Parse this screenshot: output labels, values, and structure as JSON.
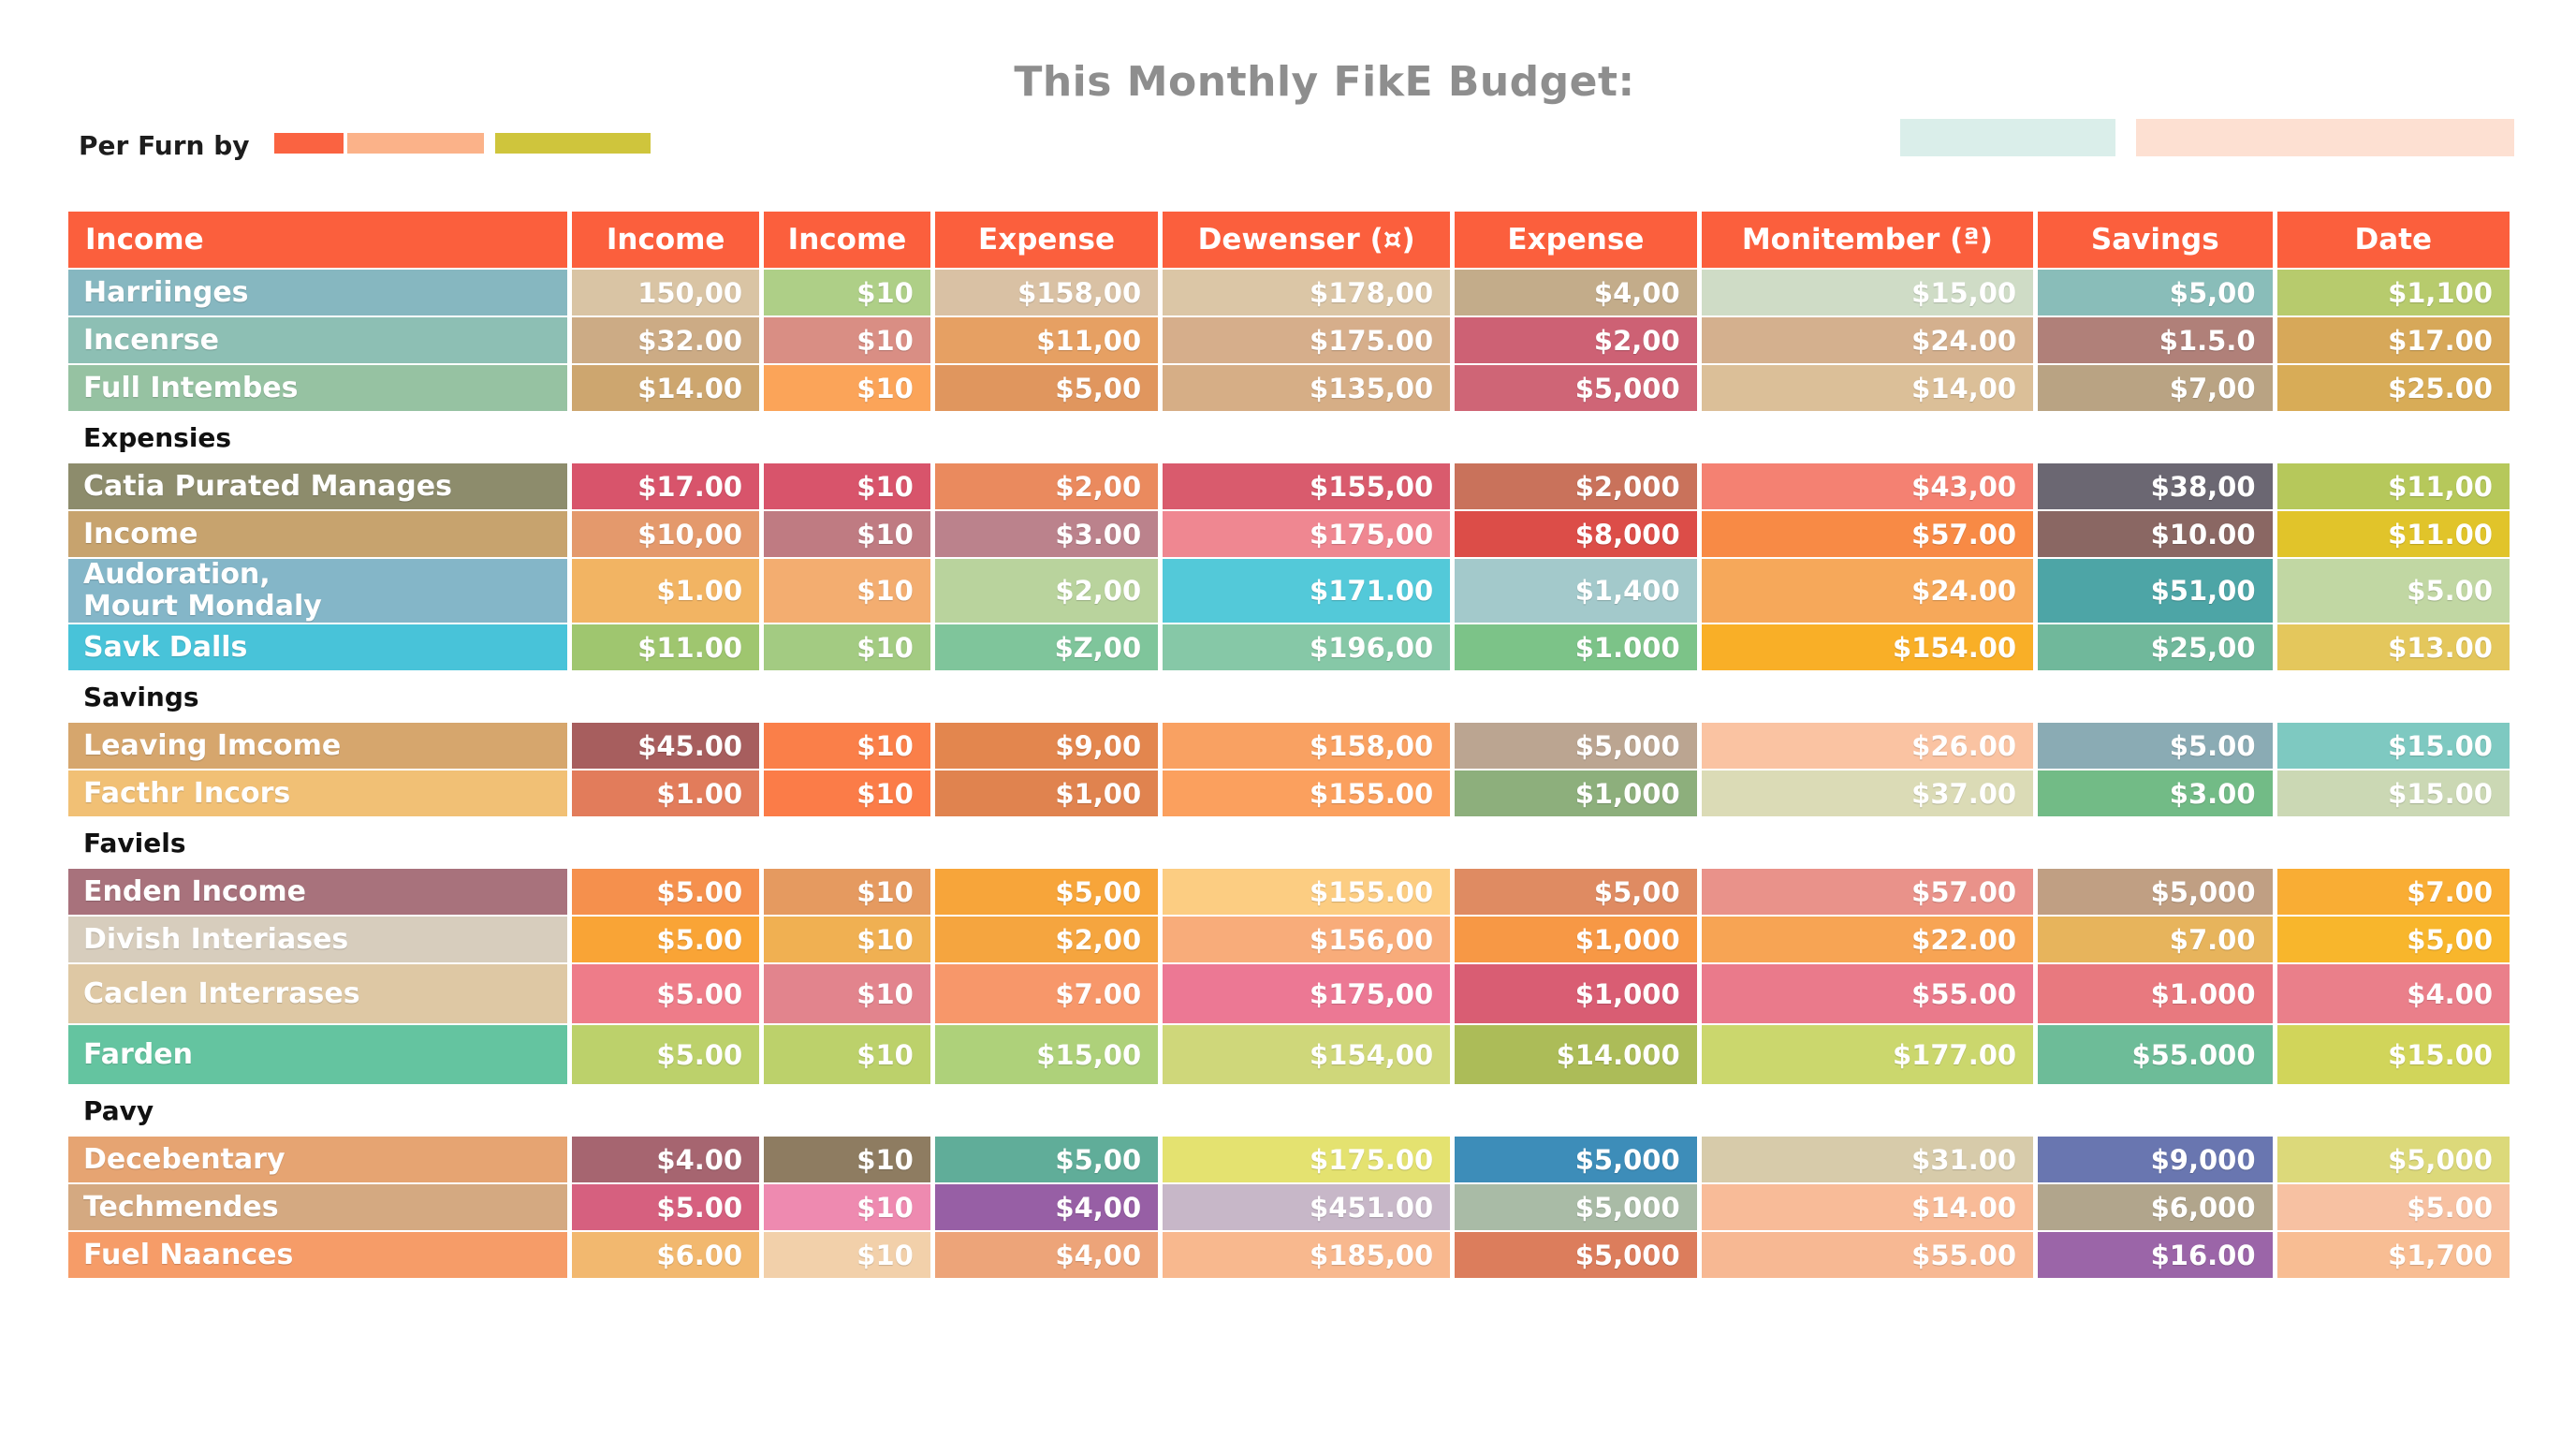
{
  "title": "This Monthly FikE Budget:",
  "legend": {
    "label": "Per Furn by",
    "swatches": [
      {
        "color": "#fa6341",
        "w": 74
      },
      {
        "color": "#fbb289",
        "w": 146
      },
      {
        "color": "#cfc53c",
        "w": 166
      }
    ]
  },
  "right_boxes": [
    {
      "color": "#daeeea"
    },
    {
      "color": "#fde0d2"
    }
  ],
  "headers": [
    "Income",
    "Income",
    "Income",
    "Expense",
    "Dewenser (¤)",
    "Expense",
    "Monitember (ª)",
    "Savings",
    "Date"
  ],
  "sections": [
    {
      "title": "",
      "rows": [
        {
          "label": "Harriinges",
          "label_color": "#86b7c0",
          "cells": [
            [
              "150,00",
              "#d9c4a4"
            ],
            [
              "$10",
              "#aecf87"
            ],
            [
              "$158,00",
              "#d9c1a4"
            ],
            [
              "$178,00",
              "#dbc6a6"
            ],
            [
              "$4,00",
              "#c3ac8a"
            ],
            [
              "$15,00",
              "#cfdcc6"
            ],
            [
              "$5,00",
              "#89bdb9"
            ],
            [
              "$1,100",
              "#b7cb6d"
            ]
          ]
        },
        {
          "label": "Incenrse",
          "label_color": "#8dbfb4",
          "cells": [
            [
              "$32.00",
              "#ccab85"
            ],
            [
              "$10",
              "#d98e84"
            ],
            [
              "$11,00",
              "#e6a063"
            ],
            [
              "$175.00",
              "#d6ae8b"
            ],
            [
              "$2,00",
              "#cd6174"
            ],
            [
              "$24.00",
              "#d4b08e"
            ],
            [
              "$1.5.0",
              "#b08079"
            ],
            [
              "$17.00",
              "#d7a859"
            ]
          ]
        },
        {
          "label": "Full Intembes",
          "label_color": "#96c2a2",
          "cells": [
            [
              "$14.00",
              "#cda66f"
            ],
            [
              "$10",
              "#fba459"
            ],
            [
              "$5,00",
              "#e0965e"
            ],
            [
              "$135,00",
              "#d6ae86"
            ],
            [
              "$5,000",
              "#cf6576"
            ],
            [
              "$14,00",
              "#dbbf98"
            ],
            [
              "$7,00",
              "#b9a383"
            ],
            [
              "$25.00",
              "#d8ac57"
            ]
          ]
        }
      ]
    },
    {
      "title": "Expensies",
      "rows": [
        {
          "label": "Catia Purated Manages",
          "label_color": "#8d8c6c",
          "cells": [
            [
              "$17.00",
              "#d8546b"
            ],
            [
              "$10",
              "#d8546b"
            ],
            [
              "$2,00",
              "#ea8a5e"
            ],
            [
              "$155,00",
              "#d95b6d"
            ],
            [
              "$2,000",
              "#c9725b"
            ],
            [
              "$43,00",
              "#f48172"
            ],
            [
              "$38,00",
              "#6b6772"
            ],
            [
              "$11,00",
              "#b6c85b"
            ]
          ]
        },
        {
          "label": "Income",
          "label_color": "#c7a36e",
          "cells": [
            [
              "$10,00",
              "#e4996c"
            ],
            [
              "$10",
              "#bf7b82"
            ],
            [
              "$3.00",
              "#bb828c"
            ],
            [
              "$175,00",
              "#ef8791"
            ],
            [
              "$8,000",
              "#dc4d48"
            ],
            [
              "$57.00",
              "#f88a45"
            ],
            [
              "$10.00",
              "#8a6763"
            ],
            [
              "$11.00",
              "#e1c42a"
            ]
          ]
        },
        {
          "label": "Audoration,\nMourt Mondaly",
          "label_color": "#84b6c8",
          "cls": "tall",
          "cells": [
            [
              "$1.00",
              "#f2b463"
            ],
            [
              "$10",
              "#f3ad70"
            ],
            [
              "$2,00",
              "#b9d39d"
            ],
            [
              "$171.00",
              "#53c9d9"
            ],
            [
              "$1,400",
              "#a3c9cb"
            ],
            [
              "$24.00",
              "#f6a85a"
            ],
            [
              "$51,00",
              "#4da5a6"
            ],
            [
              "$5.00",
              "#c1d7a3"
            ]
          ]
        },
        {
          "label": "Savk Dalls",
          "label_color": "#48c3d9",
          "cells": [
            [
              "$11.00",
              "#9fc66f"
            ],
            [
              "$10",
              "#a3cb82"
            ],
            [
              "$Z,00",
              "#7fc59b"
            ],
            [
              "$196,00",
              "#86c8a7"
            ],
            [
              "$1.000",
              "#7cc388"
            ],
            [
              "$154.00",
              "#f9af27"
            ],
            [
              "$25,00",
              "#70b89b"
            ],
            [
              "$13.00",
              "#e4c75c"
            ]
          ]
        }
      ]
    },
    {
      "title": "Savings",
      "rows": [
        {
          "label": "Leaving Imcome",
          "label_color": "#d6a66d",
          "cells": [
            [
              "$45.00",
              "#a75e5e"
            ],
            [
              "$10",
              "#fa7f49"
            ],
            [
              "$9,00",
              "#e3864e"
            ],
            [
              "$158,00",
              "#f9a162"
            ],
            [
              "$5,000",
              "#bba591"
            ],
            [
              "$26.00",
              "#fac3a2"
            ],
            [
              "$5.00",
              "#8aabb4"
            ],
            [
              "$15.00",
              "#7ec9c1"
            ]
          ]
        },
        {
          "label": "Facthr Incors",
          "label_color": "#f1c075",
          "cells": [
            [
              "$1.00",
              "#e27c5b"
            ],
            [
              "$10",
              "#fb7c48"
            ],
            [
              "$1,00",
              "#e0834f"
            ],
            [
              "$155.00",
              "#fba05e"
            ],
            [
              "$1,000",
              "#8daf7c"
            ],
            [
              "$37.00",
              "#dbdbb6"
            ],
            [
              "$3.00",
              "#72bb86"
            ],
            [
              "$15.00",
              "#cbd8b4"
            ]
          ]
        }
      ]
    },
    {
      "title": "Faviels",
      "rows": [
        {
          "label": "Enden Income",
          "label_color": "#a8727c",
          "cells": [
            [
              "$5.00",
              "#f5904d"
            ],
            [
              "$10",
              "#e59a60"
            ],
            [
              "$5,00",
              "#f7a53a"
            ],
            [
              "$155.00",
              "#fccd82"
            ],
            [
              "$5,00",
              "#df8b62"
            ],
            [
              "$57.00",
              "#e9928a"
            ],
            [
              "$5,000",
              "#c09f83"
            ],
            [
              "$7.00",
              "#f9ad34"
            ]
          ]
        },
        {
          "label": "Divish Interiases",
          "label_color": "#d7cdbd",
          "cells": [
            [
              "$5.00",
              "#f9a436"
            ],
            [
              "$10",
              "#f0b052"
            ],
            [
              "$2,00",
              "#f5a53f"
            ],
            [
              "$156,00",
              "#f8ac7a"
            ],
            [
              "$1,000",
              "#f79845"
            ],
            [
              "$22.00",
              "#f7a454"
            ],
            [
              "$7.00",
              "#e7b45c"
            ],
            [
              "$5,00",
              "#f8b62c"
            ]
          ]
        },
        {
          "label": "Caclen Interrases",
          "label_color": "#dec8a4",
          "cls": "tall2",
          "cells": [
            [
              "$5.00",
              "#ee7c89"
            ],
            [
              "$10",
              "#e2848d"
            ],
            [
              "$7.00",
              "#f7976a"
            ],
            [
              "$175,00",
              "#ec7894"
            ],
            [
              "$1,000",
              "#d95d73"
            ],
            [
              "$55.00",
              "#ea7a8b"
            ],
            [
              "$1.000",
              "#e8797f"
            ],
            [
              "$4.00",
              "#ea7f8a"
            ]
          ]
        },
        {
          "label": "Farden",
          "label_color": "#64c4a0",
          "cls": "tall2",
          "cells": [
            [
              "$5.00",
              "#bcd16b"
            ],
            [
              "$10",
              "#bcd16b"
            ],
            [
              "$15,00",
              "#aed17a"
            ],
            [
              "$154,00",
              "#cfd77a"
            ],
            [
              "$14.000",
              "#acbc58"
            ],
            [
              "$177.00",
              "#cbd76d"
            ],
            [
              "$55.000",
              "#6dbc98"
            ],
            [
              "$15.00",
              "#d1d55a"
            ]
          ]
        }
      ]
    },
    {
      "title": "Pavy",
      "rows": [
        {
          "label": "Decebentary",
          "label_color": "#e6a472",
          "cells": [
            [
              "$4.00",
              "#a66570"
            ],
            [
              "$10",
              "#8e7c61"
            ],
            [
              "$5,00",
              "#60ad99"
            ],
            [
              "$175.00",
              "#e4e270"
            ],
            [
              "$5,000",
              "#3d8db9"
            ],
            [
              "$31.00",
              "#d7cbaa"
            ],
            [
              "$9,000",
              "#6976b0"
            ],
            [
              "$5,000",
              "#dcd97a"
            ]
          ]
        },
        {
          "label": "Techmendes",
          "label_color": "#d4a981",
          "cells": [
            [
              "$5.00",
              "#d6607f"
            ],
            [
              "$10",
              "#ee8ab0"
            ],
            [
              "$4,00",
              "#975fa5"
            ],
            [
              "$451.00",
              "#c7b7c8"
            ],
            [
              "$5,000",
              "#a9bba6"
            ],
            [
              "$14.00",
              "#f8bb98"
            ],
            [
              "$6,000",
              "#b1a58c"
            ],
            [
              "$5.00",
              "#f7c1a2"
            ]
          ]
        },
        {
          "label": "Fuel Naances",
          "label_color": "#f69c68",
          "cells": [
            [
              "$6.00",
              "#f2b86f"
            ],
            [
              "$10",
              "#f2d0aa"
            ],
            [
              "$4,00",
              "#eda479"
            ],
            [
              "$185,00",
              "#f8b88e"
            ],
            [
              "$5,000",
              "#dc7d5c"
            ],
            [
              "$55.00",
              "#f7b893"
            ],
            [
              "$16.00",
              "#9b65a8"
            ],
            [
              "$1,700",
              "#f8bd93"
            ]
          ]
        }
      ]
    }
  ]
}
